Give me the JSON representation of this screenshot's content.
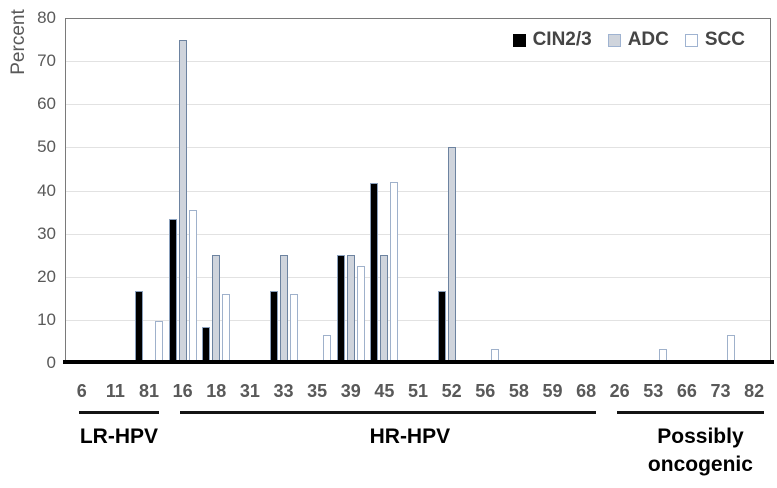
{
  "chart_data": {
    "type": "bar",
    "title": "",
    "ylabel": "Percent",
    "xlabel": "",
    "ylim": [
      0,
      80
    ],
    "ytick_step": 10,
    "grid": true,
    "legend_position": "top-right",
    "categories": [
      "6",
      "11",
      "81",
      "16",
      "18",
      "31",
      "33",
      "35",
      "39",
      "45",
      "51",
      "52",
      "56",
      "58",
      "59",
      "68",
      "26",
      "53",
      "66",
      "73",
      "82"
    ],
    "series": [
      {
        "name": "CIN2/3",
        "fill": "#000000",
        "border": "#8ba0bc",
        "legend_border": "#000000",
        "values": [
          null,
          null,
          16.7,
          33.3,
          8.3,
          null,
          16.7,
          null,
          25,
          41.7,
          null,
          16.7,
          null,
          null,
          null,
          null,
          null,
          null,
          null,
          null,
          null
        ]
      },
      {
        "name": "ADC",
        "fill": "#cfd4dc",
        "border": "#6d83a0",
        "legend_border": "#9fb3d1",
        "values": [
          null,
          null,
          null,
          75,
          25,
          null,
          25,
          null,
          25,
          25,
          null,
          50,
          null,
          null,
          null,
          null,
          null,
          null,
          null,
          null,
          null
        ]
      },
      {
        "name": "SCC",
        "fill": "#ffffff",
        "border": "#9fb1cb",
        "legend_border": "#9fb3d1",
        "values": [
          null,
          null,
          9.7,
          35.5,
          16.1,
          null,
          16.1,
          6.5,
          22.6,
          41.9,
          null,
          null,
          3.2,
          null,
          null,
          null,
          null,
          3.2,
          null,
          6.5,
          null
        ]
      }
    ],
    "groups": [
      {
        "label_lines": [
          "LR-HPV"
        ],
        "start": 0,
        "end": 2
      },
      {
        "label_lines": [
          "HR-HPV"
        ],
        "start": 3,
        "end": 15
      },
      {
        "label_lines": [
          "Possibly",
          "oncogenic"
        ],
        "start": 16,
        "end": 20
      }
    ]
  },
  "colors": {
    "gridline": "#e2e2e2",
    "plot_border": "#7a7a7a",
    "axis_line": "#000000",
    "y_tick_label": "#595959",
    "x_tick_label": "#595959",
    "legend_text": "#454545",
    "group_label": "#000000"
  }
}
